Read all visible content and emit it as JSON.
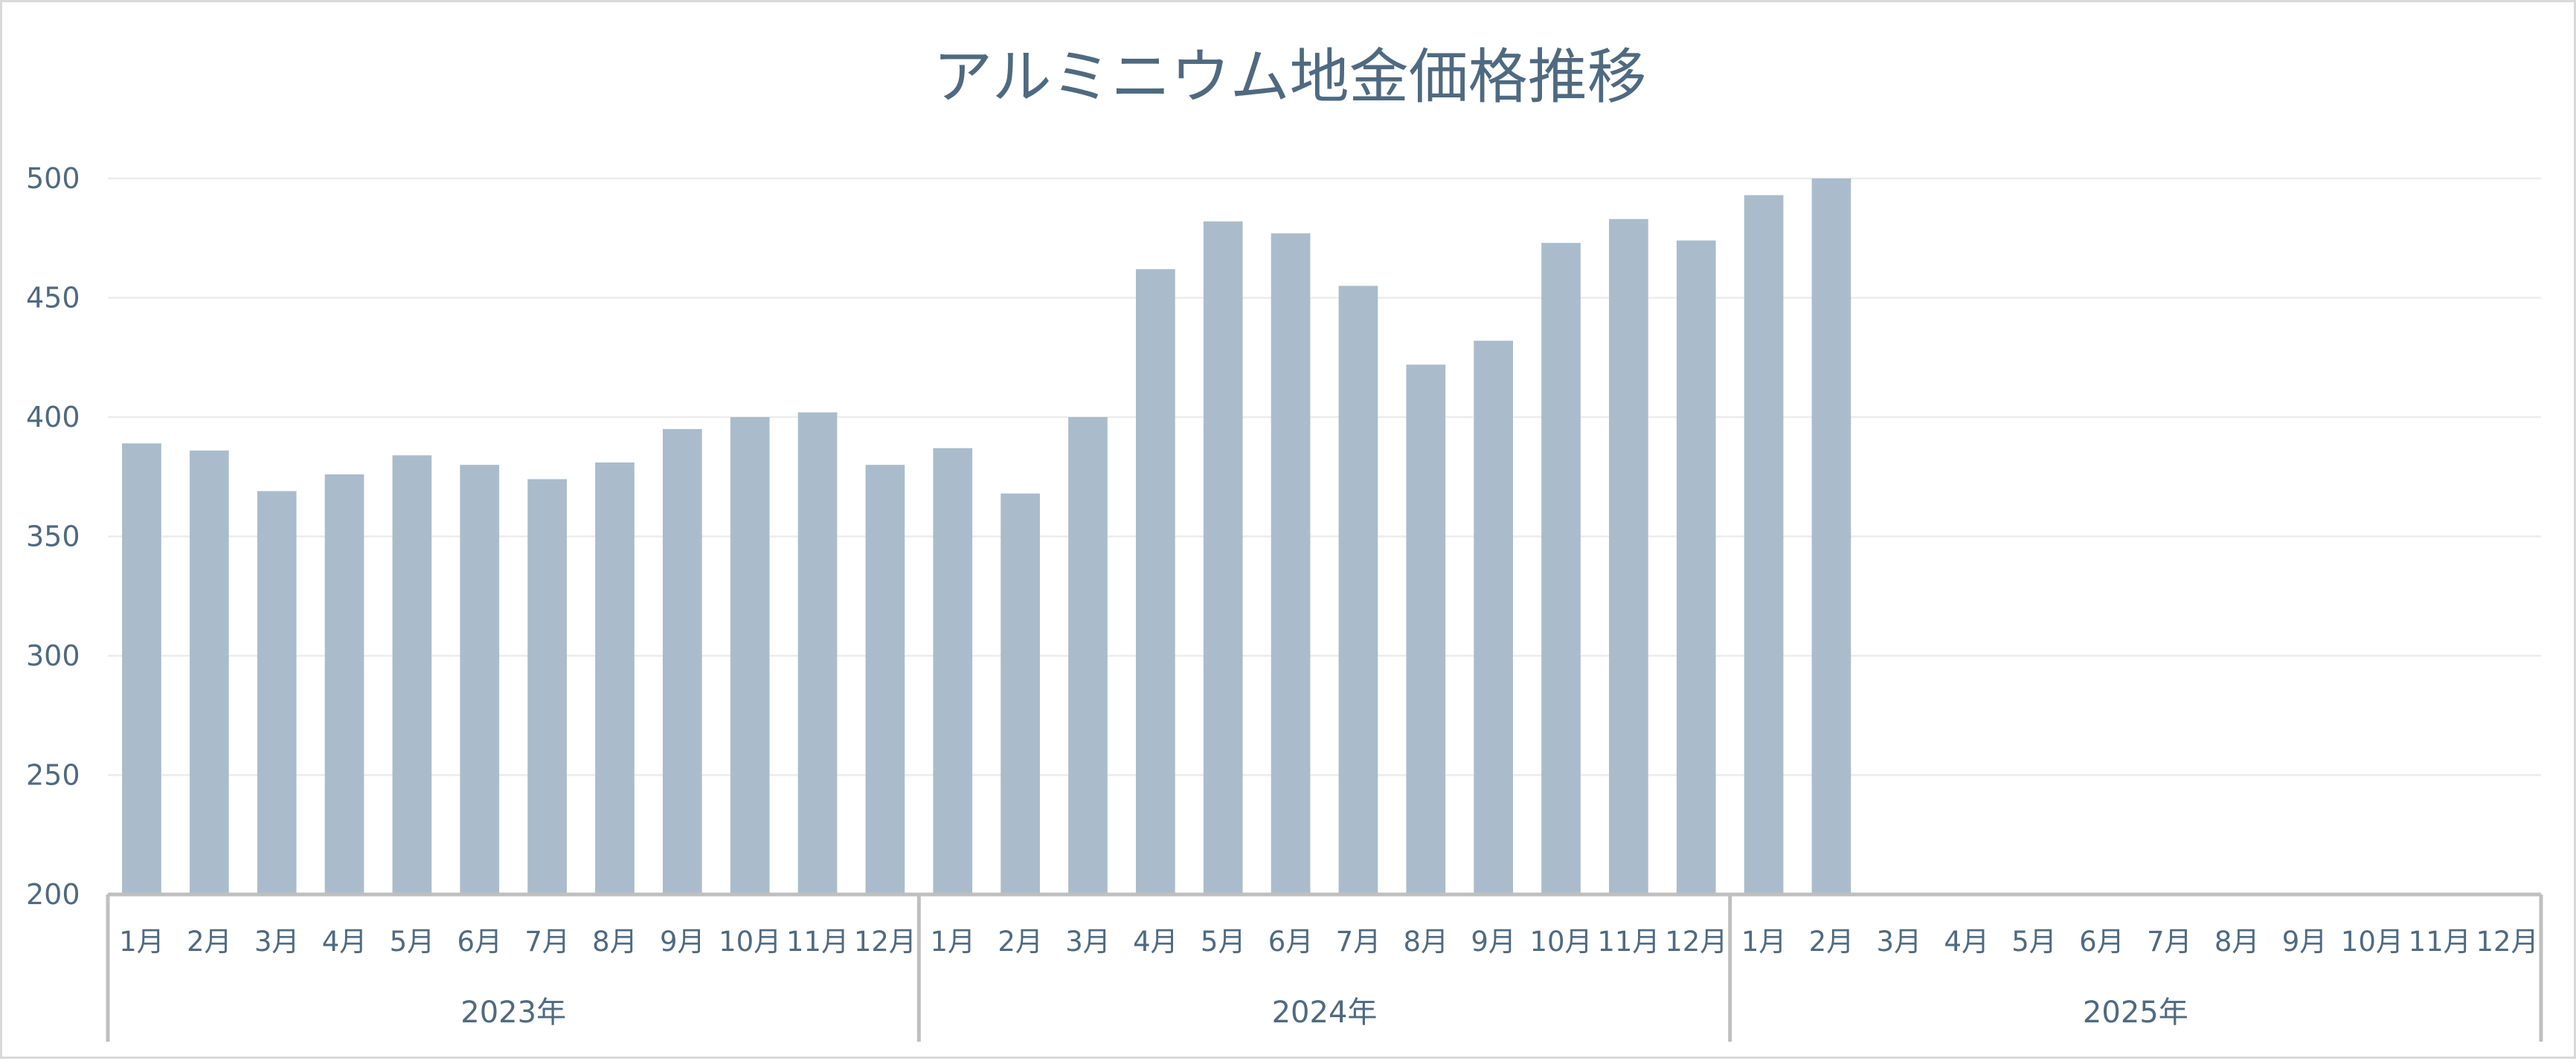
{
  "chart_data": {
    "type": "bar",
    "title": "アルミニウム地金価格推移",
    "xlabel": "",
    "ylabel": "",
    "ylim": [
      200,
      500
    ],
    "yticks": [
      "200",
      "250",
      "300",
      "350",
      "400",
      "450",
      "500"
    ],
    "grid": true,
    "legend": "none",
    "bar_color": "#aabccb",
    "groups": [
      {
        "label": "2023年",
        "categories": [
          "1月",
          "2月",
          "3月",
          "4月",
          "5月",
          "6月",
          "7月",
          "8月",
          "9月",
          "10月",
          "11月",
          "12月"
        ],
        "values": [
          389,
          386,
          369,
          376,
          384,
          380,
          374,
          381,
          395,
          400,
          402,
          380
        ]
      },
      {
        "label": "2024年",
        "categories": [
          "1月",
          "2月",
          "3月",
          "4月",
          "5月",
          "6月",
          "7月",
          "8月",
          "9月",
          "10月",
          "11月",
          "12月"
        ],
        "values": [
          387,
          368,
          400,
          462,
          482,
          477,
          455,
          422,
          432,
          473,
          483,
          474
        ]
      },
      {
        "label": "2025年",
        "categories": [
          "1月",
          "2月",
          "3月",
          "4月",
          "5月",
          "6月",
          "7月",
          "8月",
          "9月",
          "10月",
          "11月",
          "12月"
        ],
        "values": [
          493,
          500,
          null,
          null,
          null,
          null,
          null,
          null,
          null,
          null,
          null,
          null
        ]
      }
    ]
  }
}
